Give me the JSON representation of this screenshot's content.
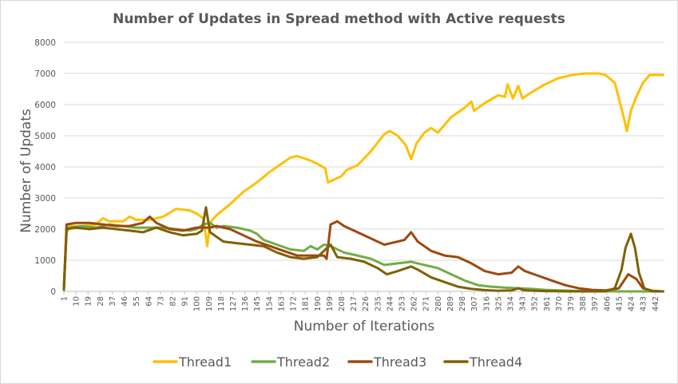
{
  "chart_data": {
    "type": "line",
    "title": "Number of Updates in Spread method with Active requests",
    "xlabel": "Number of Iterations",
    "ylabel": "Number of Updats",
    "ylim": [
      0,
      8000
    ],
    "xlim": [
      1,
      449
    ],
    "y_ticks": [
      0,
      1000,
      2000,
      3000,
      4000,
      5000,
      6000,
      7000,
      8000
    ],
    "x_tick_labels": [
      1,
      10,
      19,
      28,
      37,
      46,
      55,
      64,
      73,
      82,
      91,
      100,
      109,
      118,
      127,
      136,
      145,
      154,
      163,
      172,
      181,
      190,
      199,
      208,
      217,
      226,
      235,
      244,
      253,
      262,
      271,
      280,
      289,
      298,
      307,
      316,
      325,
      334,
      343,
      352,
      361,
      370,
      379,
      388,
      397,
      406,
      415,
      424,
      433,
      442
    ],
    "grid": "horizontal",
    "legend": "bottom",
    "series": [
      {
        "name": "Thread1",
        "color": "#FFC000",
        "points": [
          [
            1,
            100
          ],
          [
            3,
            1900
          ],
          [
            5,
            2100
          ],
          [
            15,
            2100
          ],
          [
            25,
            2150
          ],
          [
            30,
            2350
          ],
          [
            35,
            2250
          ],
          [
            45,
            2250
          ],
          [
            50,
            2400
          ],
          [
            55,
            2300
          ],
          [
            65,
            2300
          ],
          [
            75,
            2400
          ],
          [
            85,
            2650
          ],
          [
            95,
            2600
          ],
          [
            100,
            2500
          ],
          [
            105,
            2350
          ],
          [
            108,
            1450
          ],
          [
            110,
            2200
          ],
          [
            115,
            2450
          ],
          [
            125,
            2800
          ],
          [
            135,
            3200
          ],
          [
            145,
            3500
          ],
          [
            155,
            3850
          ],
          [
            160,
            4000
          ],
          [
            170,
            4300
          ],
          [
            175,
            4350
          ],
          [
            185,
            4200
          ],
          [
            190,
            4100
          ],
          [
            196,
            3950
          ],
          [
            198,
            3500
          ],
          [
            203,
            3600
          ],
          [
            208,
            3700
          ],
          [
            212,
            3900
          ],
          [
            220,
            4050
          ],
          [
            230,
            4500
          ],
          [
            240,
            5050
          ],
          [
            244,
            5150
          ],
          [
            250,
            5000
          ],
          [
            256,
            4700
          ],
          [
            260,
            4250
          ],
          [
            264,
            4750
          ],
          [
            270,
            5100
          ],
          [
            275,
            5250
          ],
          [
            280,
            5100
          ],
          [
            290,
            5600
          ],
          [
            300,
            5900
          ],
          [
            305,
            6100
          ],
          [
            307,
            5800
          ],
          [
            315,
            6050
          ],
          [
            325,
            6300
          ],
          [
            330,
            6250
          ],
          [
            332,
            6650
          ],
          [
            336,
            6200
          ],
          [
            340,
            6600
          ],
          [
            343,
            6200
          ],
          [
            350,
            6400
          ],
          [
            360,
            6650
          ],
          [
            370,
            6850
          ],
          [
            380,
            6950
          ],
          [
            390,
            7000
          ],
          [
            400,
            7000
          ],
          [
            405,
            6950
          ],
          [
            412,
            6700
          ],
          [
            418,
            5700
          ],
          [
            421,
            5150
          ],
          [
            424,
            5800
          ],
          [
            428,
            6250
          ],
          [
            433,
            6700
          ],
          [
            438,
            6950
          ],
          [
            448,
            6950
          ]
        ]
      },
      {
        "name": "Thread2",
        "color": "#70AD47",
        "points": [
          [
            1,
            100
          ],
          [
            3,
            1950
          ],
          [
            5,
            2050
          ],
          [
            15,
            2100
          ],
          [
            25,
            2050
          ],
          [
            35,
            2150
          ],
          [
            45,
            2100
          ],
          [
            55,
            2050
          ],
          [
            65,
            2050
          ],
          [
            75,
            2050
          ],
          [
            85,
            2000
          ],
          [
            95,
            1950
          ],
          [
            100,
            2000
          ],
          [
            105,
            2150
          ],
          [
            110,
            2200
          ],
          [
            115,
            2050
          ],
          [
            120,
            2100
          ],
          [
            130,
            2050
          ],
          [
            140,
            1950
          ],
          [
            145,
            1850
          ],
          [
            150,
            1650
          ],
          [
            160,
            1500
          ],
          [
            170,
            1350
          ],
          [
            180,
            1300
          ],
          [
            185,
            1450
          ],
          [
            190,
            1350
          ],
          [
            195,
            1500
          ],
          [
            200,
            1450
          ],
          [
            210,
            1250
          ],
          [
            220,
            1150
          ],
          [
            230,
            1050
          ],
          [
            240,
            850
          ],
          [
            250,
            900
          ],
          [
            260,
            950
          ],
          [
            270,
            850
          ],
          [
            280,
            750
          ],
          [
            290,
            550
          ],
          [
            300,
            350
          ],
          [
            310,
            200
          ],
          [
            320,
            150
          ],
          [
            330,
            120
          ],
          [
            340,
            100
          ],
          [
            350,
            80
          ],
          [
            360,
            50
          ],
          [
            370,
            30
          ],
          [
            380,
            20
          ],
          [
            390,
            10
          ],
          [
            400,
            5
          ],
          [
            420,
            0
          ],
          [
            448,
            0
          ]
        ]
      },
      {
        "name": "Thread3",
        "color": "#9E480E",
        "points": [
          [
            1,
            100
          ],
          [
            3,
            2150
          ],
          [
            10,
            2200
          ],
          [
            20,
            2200
          ],
          [
            30,
            2150
          ],
          [
            40,
            2100
          ],
          [
            50,
            2100
          ],
          [
            60,
            2200
          ],
          [
            65,
            2400
          ],
          [
            70,
            2200
          ],
          [
            80,
            2000
          ],
          [
            90,
            1950
          ],
          [
            100,
            2050
          ],
          [
            110,
            2050
          ],
          [
            115,
            2100
          ],
          [
            125,
            2000
          ],
          [
            135,
            1800
          ],
          [
            145,
            1600
          ],
          [
            155,
            1450
          ],
          [
            165,
            1300
          ],
          [
            175,
            1150
          ],
          [
            185,
            1150
          ],
          [
            195,
            1150
          ],
          [
            197,
            1050
          ],
          [
            200,
            2150
          ],
          [
            205,
            2250
          ],
          [
            210,
            2100
          ],
          [
            220,
            1900
          ],
          [
            230,
            1700
          ],
          [
            240,
            1500
          ],
          [
            250,
            1600
          ],
          [
            255,
            1650
          ],
          [
            260,
            1900
          ],
          [
            265,
            1600
          ],
          [
            275,
            1300
          ],
          [
            285,
            1150
          ],
          [
            295,
            1100
          ],
          [
            305,
            900
          ],
          [
            315,
            650
          ],
          [
            325,
            550
          ],
          [
            335,
            600
          ],
          [
            340,
            800
          ],
          [
            345,
            650
          ],
          [
            355,
            500
          ],
          [
            365,
            350
          ],
          [
            375,
            200
          ],
          [
            385,
            100
          ],
          [
            395,
            50
          ],
          [
            405,
            30
          ],
          [
            415,
            100
          ],
          [
            422,
            550
          ],
          [
            428,
            400
          ],
          [
            433,
            100
          ],
          [
            440,
            20
          ],
          [
            448,
            0
          ]
        ]
      },
      {
        "name": "Thread4",
        "color": "#806000",
        "points": [
          [
            1,
            50
          ],
          [
            3,
            2000
          ],
          [
            10,
            2050
          ],
          [
            20,
            2000
          ],
          [
            30,
            2050
          ],
          [
            40,
            2000
          ],
          [
            50,
            1950
          ],
          [
            60,
            1900
          ],
          [
            70,
            2050
          ],
          [
            80,
            1900
          ],
          [
            90,
            1800
          ],
          [
            100,
            1850
          ],
          [
            104,
            1950
          ],
          [
            107,
            2700
          ],
          [
            110,
            1900
          ],
          [
            120,
            1600
          ],
          [
            130,
            1550
          ],
          [
            140,
            1500
          ],
          [
            150,
            1450
          ],
          [
            160,
            1250
          ],
          [
            170,
            1100
          ],
          [
            180,
            1050
          ],
          [
            190,
            1100
          ],
          [
            195,
            1300
          ],
          [
            200,
            1500
          ],
          [
            205,
            1100
          ],
          [
            215,
            1050
          ],
          [
            225,
            950
          ],
          [
            235,
            750
          ],
          [
            242,
            550
          ],
          [
            250,
            650
          ],
          [
            260,
            800
          ],
          [
            265,
            700
          ],
          [
            275,
            450
          ],
          [
            285,
            300
          ],
          [
            295,
            150
          ],
          [
            305,
            80
          ],
          [
            315,
            40
          ],
          [
            325,
            20
          ],
          [
            335,
            30
          ],
          [
            340,
            100
          ],
          [
            345,
            30
          ],
          [
            360,
            10
          ],
          [
            380,
            0
          ],
          [
            405,
            0
          ],
          [
            412,
            100
          ],
          [
            417,
            700
          ],
          [
            420,
            1400
          ],
          [
            424,
            1850
          ],
          [
            427,
            1400
          ],
          [
            430,
            600
          ],
          [
            434,
            100
          ],
          [
            440,
            0
          ],
          [
            448,
            0
          ]
        ]
      }
    ]
  }
}
